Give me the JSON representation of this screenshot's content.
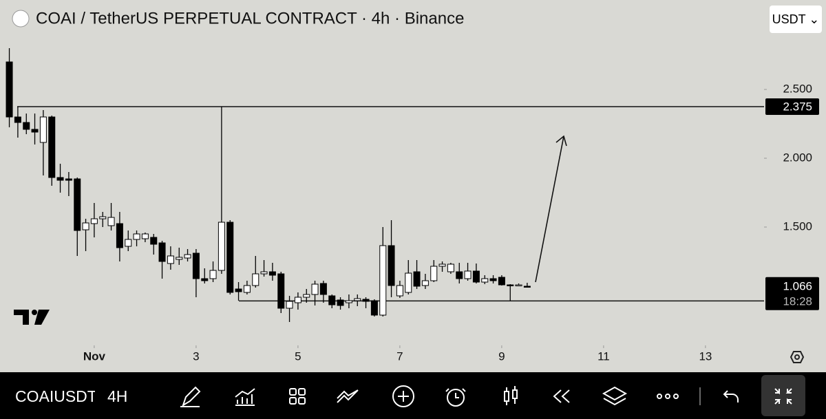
{
  "header": {
    "title": "COAI / TetherUS PERPETUAL CONTRACT · 4h · Binance",
    "currency": "USDT"
  },
  "chart_data": {
    "type": "candlestick",
    "x": [
      -0.667,
      -0.5,
      -0.333,
      -0.167,
      0,
      0.167,
      0.333,
      0.5,
      0.667,
      0.833,
      1,
      1.167,
      1.333,
      1.5,
      1.667,
      1.833,
      2,
      2.167,
      2.333,
      2.5,
      2.667,
      2.833,
      3,
      3.167,
      3.333,
      3.5,
      3.667,
      3.833,
      4,
      4.167,
      4.333,
      4.5,
      4.667,
      4.833,
      5,
      5.167,
      5.333,
      5.5,
      5.667,
      5.833,
      6,
      6.167,
      6.333,
      6.5,
      6.667,
      6.833,
      7,
      7.167,
      7.333,
      7.5,
      7.667,
      7.833,
      8,
      8.167,
      8.333,
      8.5,
      8.667,
      8.833,
      9,
      9.167,
      9.333,
      9.5
    ],
    "open": [
      2.7,
      2.3,
      2.26,
      2.21,
      2.115,
      2.3,
      1.86,
      1.85,
      1.85,
      1.48,
      1.525,
      1.56,
      1.51,
      1.525,
      1.36,
      1.41,
      1.415,
      1.425,
      1.385,
      1.235,
      1.265,
      1.275,
      1.31,
      1.125,
      1.125,
      1.185,
      1.535,
      1.05,
      1.025,
      1.075,
      1.16,
      1.175,
      1.16,
      0.91,
      0.95,
      0.99,
      1.01,
      1.09,
      1.0,
      0.97,
      0.95,
      0.965,
      0.975,
      0.965,
      0.86,
      1.365,
      1.0,
      1.025,
      1.175,
      1.075,
      1.11,
      1.215,
      1.175,
      1.175,
      1.125,
      1.18,
      1.1,
      1.125,
      1.135,
      1.08,
      1.08,
      1.07
    ],
    "high": [
      2.8,
      2.375,
      2.325,
      2.325,
      2.35,
      2.31,
      1.96,
      1.9,
      1.86,
      1.56,
      1.675,
      1.61,
      1.675,
      1.61,
      1.475,
      1.475,
      1.46,
      1.45,
      1.4,
      1.36,
      1.35,
      1.34,
      1.34,
      1.2,
      1.25,
      2.375,
      1.55,
      1.1,
      1.11,
      1.29,
      1.26,
      1.24,
      1.175,
      1.0,
      1.025,
      1.05,
      1.11,
      1.11,
      1.01,
      0.99,
      1.01,
      1.01,
      0.99,
      0.975,
      1.5,
      1.55,
      1.11,
      1.26,
      1.26,
      1.16,
      1.26,
      1.25,
      1.24,
      1.24,
      1.24,
      1.235,
      1.15,
      1.15,
      1.15,
      1.085,
      1.09,
      1.095
    ],
    "low": [
      2.225,
      2.15,
      2.175,
      2.1,
      1.875,
      1.8,
      1.75,
      1.725,
      1.29,
      1.325,
      1.425,
      1.5,
      1.475,
      1.25,
      1.325,
      1.36,
      1.39,
      1.3,
      1.125,
      1.19,
      1.225,
      1.25,
      0.99,
      1.09,
      1.1,
      1.16,
      1.01,
      0.965,
      1.01,
      1.06,
      1.14,
      1.11,
      0.875,
      0.81,
      0.9,
      0.95,
      0.93,
      0.95,
      0.91,
      0.9,
      0.91,
      0.925,
      0.91,
      0.85,
      0.85,
      0.99,
      0.985,
      1.01,
      1.05,
      1.05,
      1.1,
      1.175,
      1.16,
      1.09,
      1.11,
      1.09,
      1.085,
      1.09,
      1.075,
      0.965,
      1.07,
      1.065
    ],
    "close": [
      2.3,
      2.26,
      2.21,
      2.19,
      2.3,
      1.86,
      1.84,
      1.84,
      1.475,
      1.53,
      1.56,
      1.575,
      1.57,
      1.35,
      1.41,
      1.45,
      1.45,
      1.375,
      1.25,
      1.29,
      1.28,
      1.3,
      1.125,
      1.11,
      1.185,
      1.535,
      1.025,
      1.03,
      1.075,
      1.16,
      1.175,
      1.15,
      0.91,
      0.96,
      0.99,
      1.01,
      1.085,
      1.01,
      0.935,
      0.93,
      0.965,
      0.98,
      0.96,
      0.86,
      1.365,
      1.075,
      1.075,
      1.165,
      1.07,
      1.11,
      1.215,
      1.23,
      1.23,
      1.125,
      1.18,
      1.1,
      1.125,
      1.11,
      1.08,
      1.075,
      1.08,
      1.066
    ],
    "xlim": [
      -0.85,
      14.15
    ],
    "xticks": [
      {
        "value": 1,
        "label": "Nov"
      },
      3,
      5,
      7,
      9,
      11,
      13
    ],
    "ylim": [
      0.65,
      2.9
    ],
    "yticks": [
      {
        "value": 2.5,
        "label": "2.500"
      },
      {
        "value": 2.0,
        "label": "2.000"
      },
      {
        "value": 1.5,
        "label": "1.500"
      }
    ],
    "hlines": [
      2.375,
      0.963
    ],
    "last_price": 1.066,
    "countdown": "18:28",
    "up_color": "#ffffff",
    "down_color": "#000000"
  },
  "toolbar": {
    "symbol": "COAIUSDT",
    "interval": "4H"
  }
}
